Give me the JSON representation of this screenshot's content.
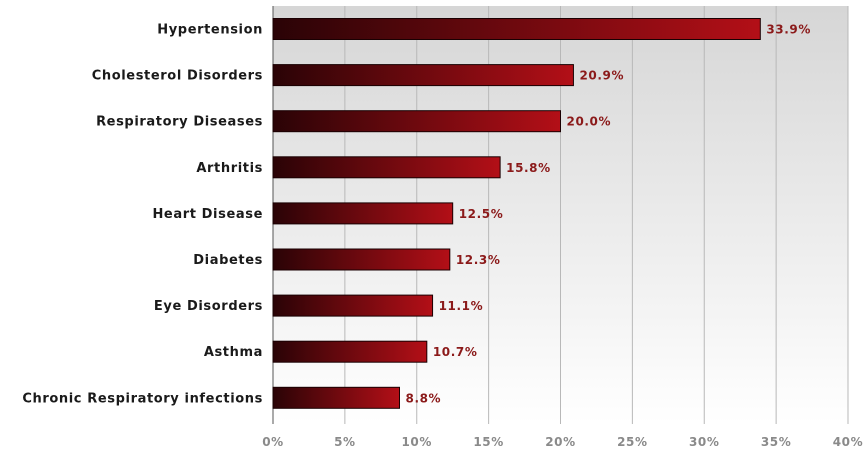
{
  "chart_data": {
    "type": "bar",
    "orientation": "horizontal",
    "categories": [
      "Hypertension",
      "Cholesterol Disorders",
      "Respiratory Diseases",
      "Arthritis",
      "Heart Disease",
      "Diabetes",
      "Eye Disorders",
      "Asthma",
      "Chronic Respiratory infections"
    ],
    "values": [
      33.9,
      20.9,
      20.0,
      15.8,
      12.5,
      12.3,
      11.1,
      10.7,
      8.8
    ],
    "value_labels": [
      "33.9%",
      "20.9%",
      "20.0%",
      "15.8%",
      "12.5%",
      "12.3%",
      "11.1%",
      "10.7%",
      "8.8%"
    ],
    "xlim": [
      0,
      40
    ],
    "x_ticks": [
      0,
      5,
      10,
      15,
      20,
      25,
      30,
      35,
      40
    ],
    "x_tick_labels": [
      "0%",
      "5%",
      "10%",
      "15%",
      "20%",
      "25%",
      "30%",
      "35%",
      "40%"
    ],
    "title": "",
    "xlabel": "",
    "ylabel": "",
    "grid": "vertical",
    "legend": "none",
    "colors": {
      "bar_dark": "#2a0306",
      "bar_light": "#b30f17",
      "bar_stroke": "#1a0002",
      "value_label": "#8b1a1a",
      "plot_bg_top": "#d6d6d6",
      "plot_bg_bottom": "#ffffff",
      "grid": "#b8b8b8"
    }
  }
}
